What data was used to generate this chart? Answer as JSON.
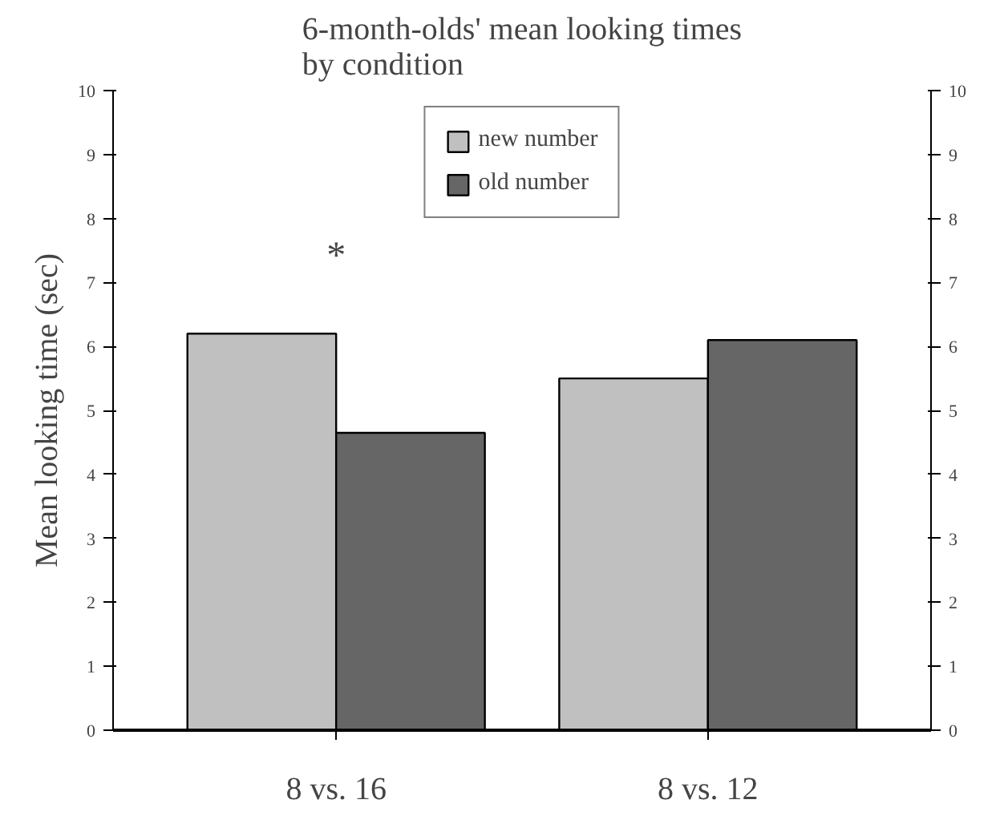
{
  "chart_data": {
    "type": "bar",
    "title": "6-month-olds' mean looking times\nby condition",
    "ylabel": "Mean looking time (sec)",
    "categories": [
      "8 vs. 16",
      "8 vs. 12"
    ],
    "series": [
      {
        "name": "new number",
        "color": "#c0c0c0",
        "values": [
          6.2,
          5.5
        ]
      },
      {
        "name": "old number",
        "color": "#666666",
        "values": [
          4.65,
          6.1
        ]
      }
    ],
    "ylim": [
      0,
      10
    ],
    "yticks": [
      0,
      1,
      2,
      3,
      4,
      5,
      6,
      7,
      8,
      9,
      10
    ],
    "y2lim": [
      0,
      10
    ],
    "y2ticks": [
      0,
      1,
      2,
      3,
      4,
      5,
      6,
      7,
      8,
      9,
      10
    ],
    "annotations": [
      "*"
    ],
    "legend": "top",
    "grid": false
  }
}
